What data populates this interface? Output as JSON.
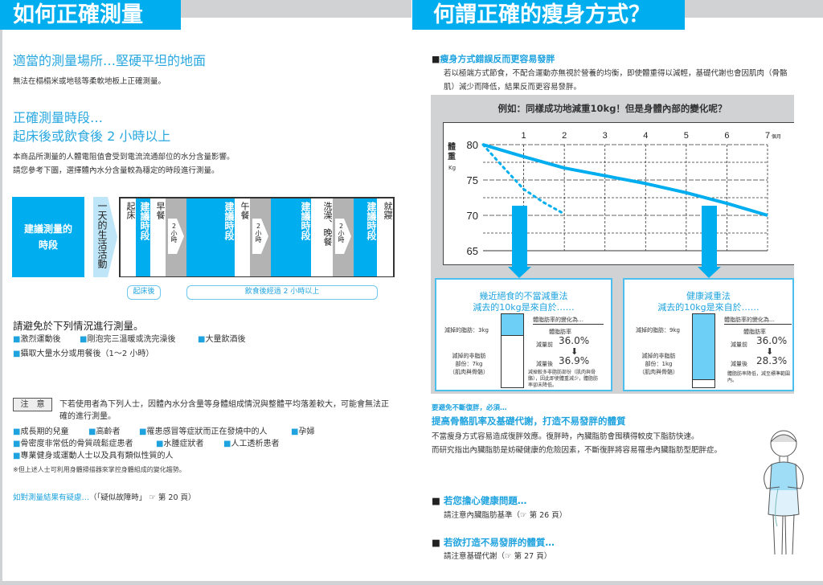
{
  "left": {
    "header": "如何正確測量",
    "place_heading": "適當的測量場所…堅硬平坦的地面",
    "place_text": "無法在榻榻米或地毯等柔軟地板上正確測量。",
    "time_heading_1": "正確測量時段…",
    "time_heading_2": "起床後或飲食後 2 小時以上",
    "time_text_1": "本商品所測量的人體電阻值會受到電流流通部位的水分含量影響。",
    "time_text_2": "請您參考下圖，選擇體內水分含量較為穩定的時段進行測量。",
    "timeline": {
      "label": "建議測量的時段",
      "side_label": "一天的生活活動",
      "columns": [
        {
          "type": "white",
          "text": "起床"
        },
        {
          "type": "blue",
          "text": "建議時段"
        },
        {
          "type": "white",
          "text": "早餐"
        },
        {
          "type": "gray",
          "text": "2小時"
        },
        {
          "type": "blue",
          "text": "建議時段"
        },
        {
          "type": "white",
          "text": "午餐"
        },
        {
          "type": "gray",
          "text": "2小時"
        },
        {
          "type": "blue",
          "text": "建議時段"
        },
        {
          "type": "white",
          "text": "洗澡、晚餐"
        },
        {
          "type": "gray",
          "text": "2小時"
        },
        {
          "type": "blue",
          "text": "建議時段"
        },
        {
          "type": "white",
          "text": "就寢"
        }
      ],
      "bracket_1": "起床後",
      "bracket_2": "飲食後經過 2 小時以上"
    },
    "avoid_heading": "請避免於下列情況進行測量。",
    "avoid_items": [
      "激烈運動後",
      "剛泡完三溫暖或洗完澡後",
      "大量飲酒後",
      "攝取大量水分或用餐後（1～2 小時）"
    ],
    "caution_label": "注　意",
    "caution_text": "下若使用者為下列人士，因體內水分含量等身體組成情況與整體平均落差較大，可能會無法正確的進行測量。",
    "caution_items": [
      "成長期的兒童",
      "高齡者",
      "罹患感冒等症狀而正在發燒中的人",
      "孕婦",
      "骨密度非常低的骨質疏鬆症患者",
      "水腫症狀者",
      "人工透析患者",
      "專業健身或運動人士以及具有類似性質的人"
    ],
    "caution_note": "※但上述人士可利用身體掃描器來掌控身體組成的變化趨勢。",
    "link_text": "如對測量結果有疑慮…",
    "link_ref": "（「疑似故障時」",
    "link_page": "第 20 頁）"
  },
  "right": {
    "header": "何謂正確的瘦身方式？",
    "wrong_heading": "瘦身方式錯誤反而更容易發胖",
    "wrong_text": "若以極端方式節食，不配合運動亦無視於營養的均衡，即使體重得以減輕，基礎代謝也會因肌肉（骨骼肌）減少而降低，結果反而更容易發胖。",
    "panel_title": "例如：同樣成功地減重10kg！但是身體內部的變化呢？",
    "chart_data": {
      "type": "line",
      "ylabel": "體重",
      "yunit": "Kg",
      "xunit": "個月",
      "x_ticks": [
        "1",
        "2",
        "3",
        "4",
        "5",
        "6",
        "7"
      ],
      "y_ticks": [
        "80",
        "75",
        "70",
        "65"
      ],
      "xlim": [
        0,
        7
      ],
      "ylim": [
        65,
        80
      ],
      "grid": true,
      "series": [
        {
          "style": "solid",
          "x": [
            0,
            1,
            2,
            3,
            4,
            5,
            6,
            7
          ],
          "y": [
            80,
            78.3,
            76.7,
            75.6,
            74.5,
            73.2,
            71.7,
            70
          ]
        },
        {
          "style": "dotted",
          "x": [
            0,
            0.5,
            1,
            1.5,
            2
          ],
          "y": [
            80,
            76.8,
            73.7,
            71.8,
            70.2
          ]
        }
      ],
      "color": "#00aeef"
    },
    "bad": {
      "title_1": "幾近絕食的不當減重法",
      "title_2": "減去的10kg是來自於……",
      "fat": "減掉的脂肪：3kg",
      "nonfat_1": "減掉的非脂肪",
      "nonfat_2": "部份：7kg",
      "nonfat_3": "（肌肉與骨骼）",
      "fat_fraction": 0.3,
      "change_heading": "體脂肪率的變化為…",
      "rate_label": "體脂肪率",
      "before_label": "減量前",
      "before": "36.0%",
      "after_label": "減量後",
      "after": "36.9%",
      "note": "減掉較多非脂肪部份（肌肉與骨骼），因此即使體重減少，體脂肪率卻未降低。"
    },
    "good": {
      "title_1": "健康減重法",
      "title_2": "減去的10kg是來自於……",
      "fat": "減掉的脂肪：9kg",
      "nonfat_1": "減掉的非脂肪",
      "nonfat_2": "部份：1kg",
      "nonfat_3": "（肌肉與骨骼）",
      "fat_fraction": 0.9,
      "change_heading": "體脂肪率的變化為…",
      "rate_label": "體脂肪率",
      "before_label": "減量前",
      "before": "36.0%",
      "after_label": "減量後",
      "after": "28.3%",
      "note": "體脂肪率降低，減至標準範圍內。"
    },
    "avoid_lead": "要避免不斷復胖，必須…",
    "avoid_heading": "提高骨骼肌率及基礎代謝，打造不易發胖的體質",
    "avoid_text_1": "不當瘦身方式容易造成復胖效應。復胖時，內臟脂肪會囤積得較皮下脂肪快速。",
    "avoid_text_2": "而研究指出內臟脂肪是妨礙健康的危險因素，不斷復胖將容易罹患內臟脂肪型肥胖症。",
    "health_heading": "若您擔心健康問題…",
    "health_text": "請注意內臟脂肪基準（",
    "health_page": "第 26 頁）",
    "body_heading": "若欲打造不易發胖的體質…",
    "body_text": "請注意基礎代謝（",
    "body_page": "第 27 頁）"
  }
}
